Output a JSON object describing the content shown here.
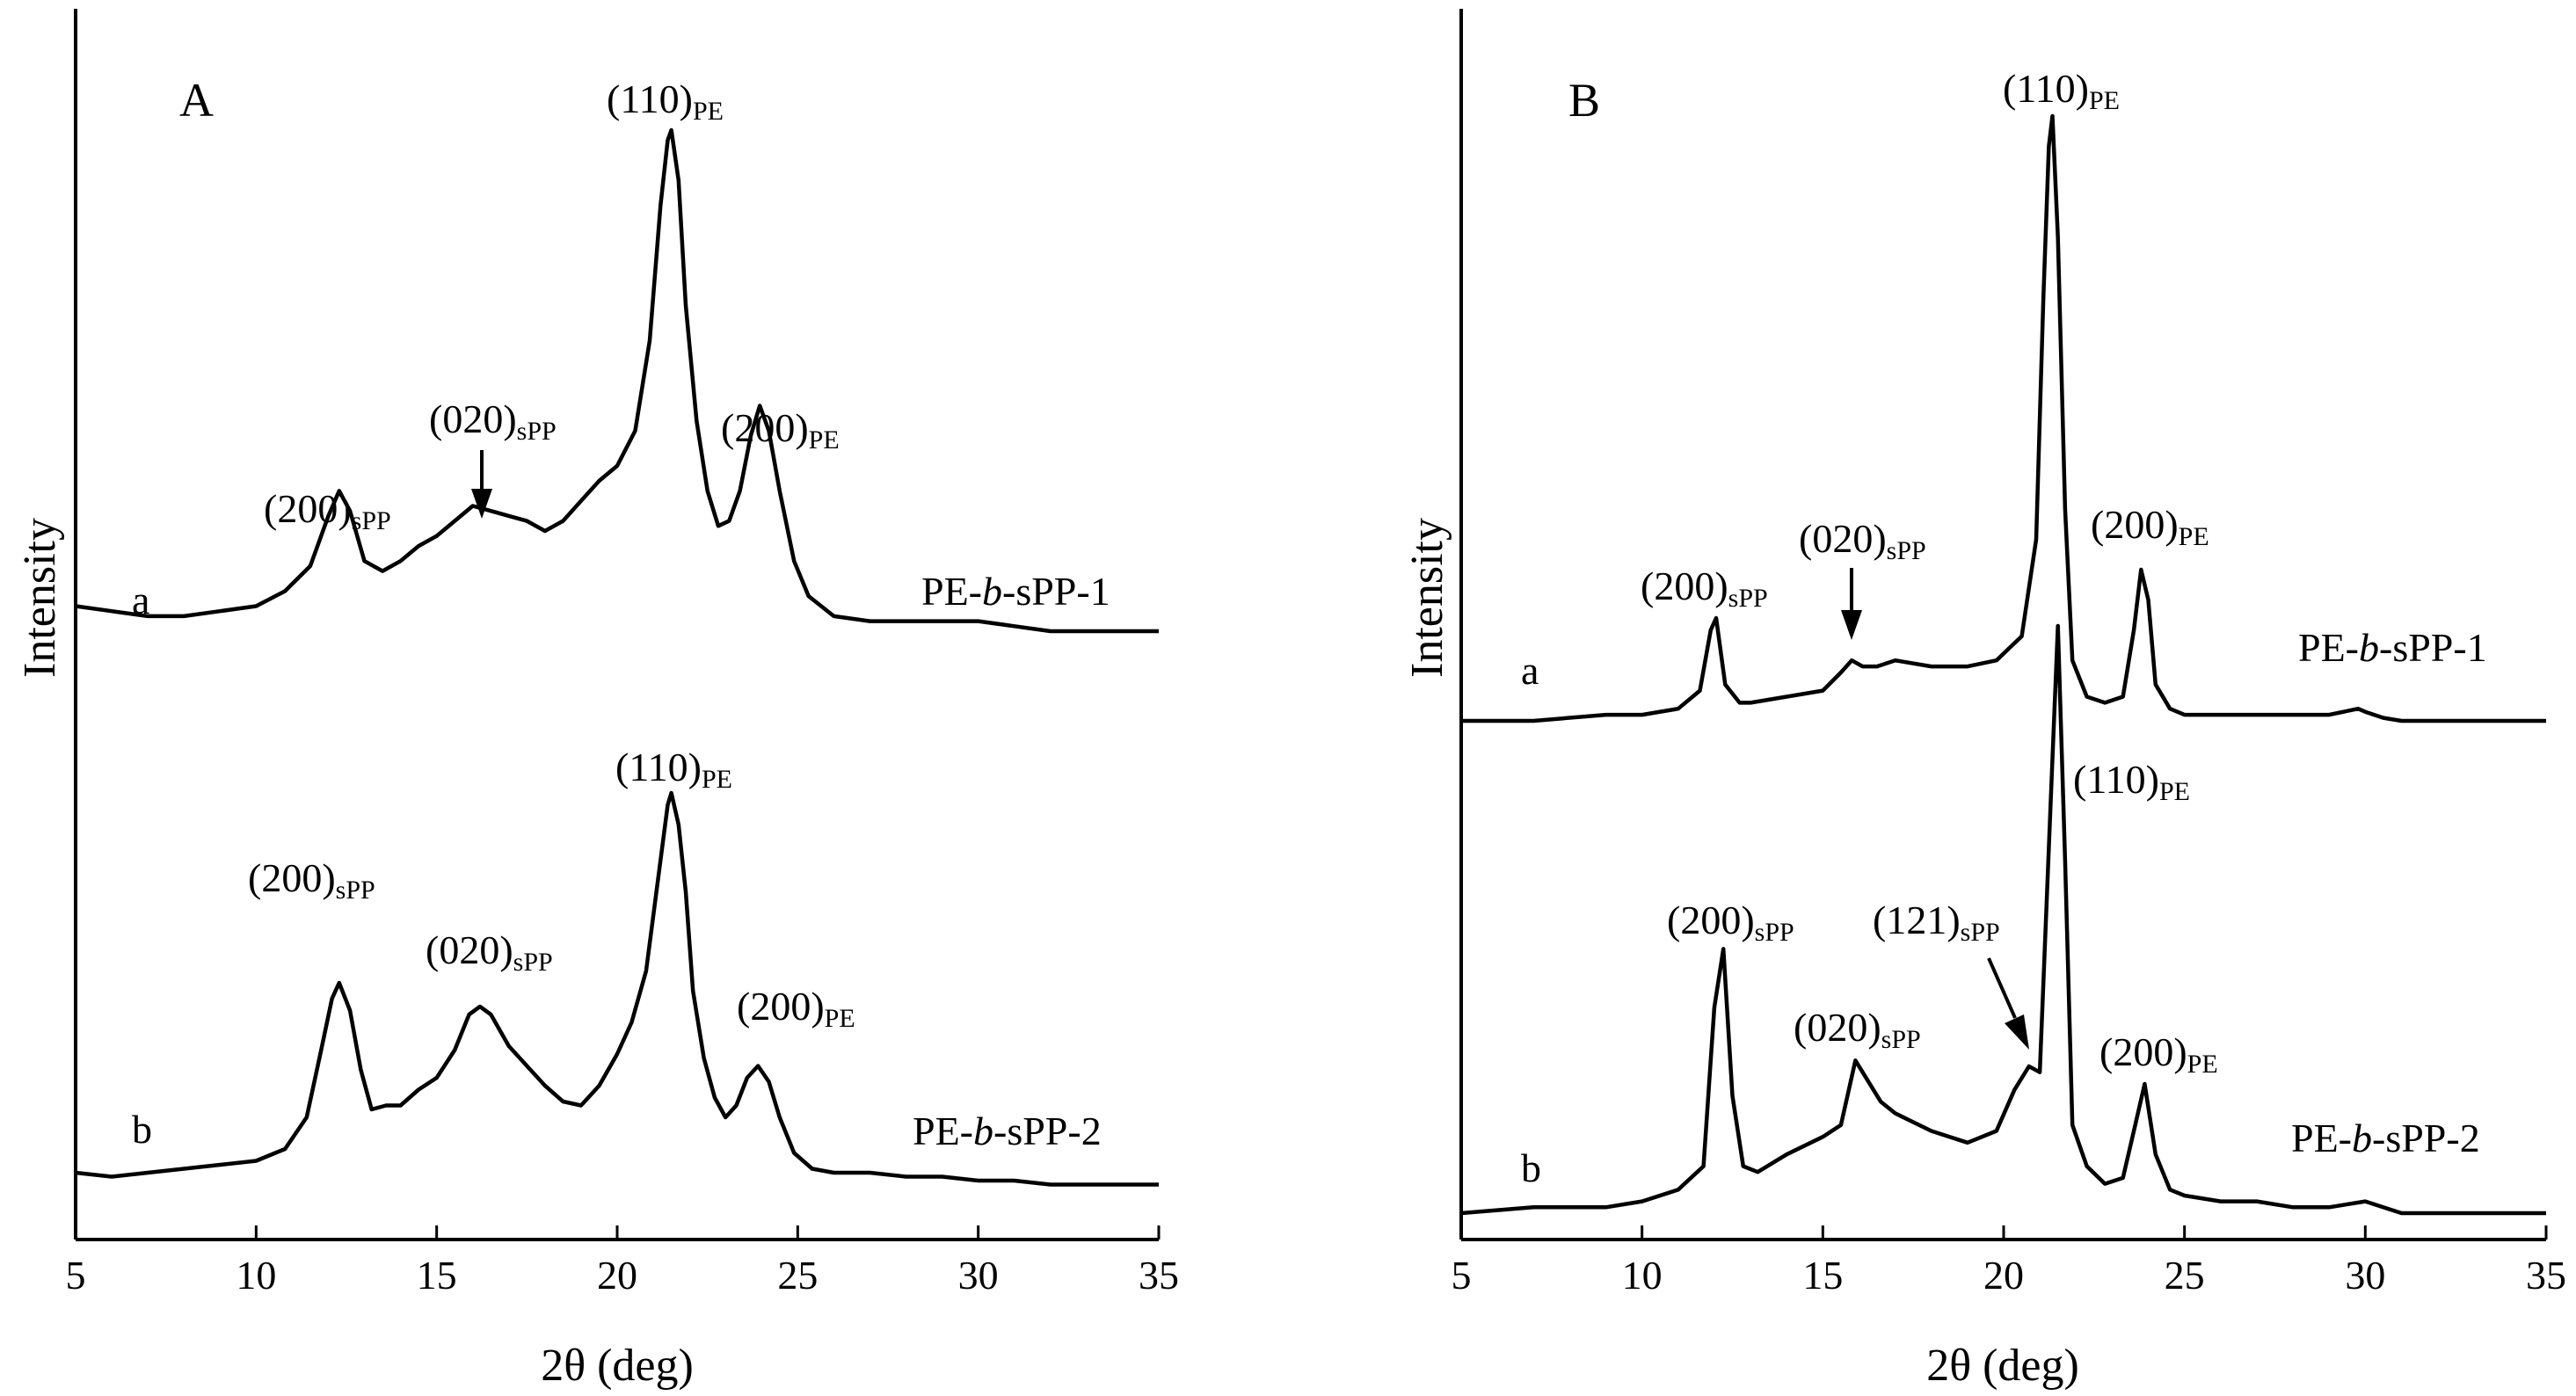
{
  "chart_data": [
    {
      "panel": "A",
      "type": "line",
      "xlabel": "2θ (deg)",
      "ylabel": "Intensity",
      "xlim": [
        5,
        35
      ],
      "xticks": [
        5,
        10,
        15,
        20,
        25,
        30,
        35
      ],
      "yticks": false,
      "series": [
        {
          "tag": "a",
          "name": "PE-b-sPP-1",
          "name_parts": [
            "PE-",
            "b",
            "-sPP-1"
          ],
          "points": [
            [
              5,
              0.05
            ],
            [
              6,
              0.04
            ],
            [
              7,
              0.03
            ],
            [
              8,
              0.03
            ],
            [
              9,
              0.04
            ],
            [
              10,
              0.05
            ],
            [
              10.8,
              0.08
            ],
            [
              11.5,
              0.13
            ],
            [
              12.0,
              0.23
            ],
            [
              12.3,
              0.28
            ],
            [
              12.6,
              0.24
            ],
            [
              13.0,
              0.14
            ],
            [
              13.5,
              0.12
            ],
            [
              14,
              0.14
            ],
            [
              14.5,
              0.17
            ],
            [
              15,
              0.19
            ],
            [
              15.5,
              0.22
            ],
            [
              16,
              0.25
            ],
            [
              16.5,
              0.24
            ],
            [
              17,
              0.23
            ],
            [
              17.5,
              0.22
            ],
            [
              18,
              0.2
            ],
            [
              18.5,
              0.22
            ],
            [
              19,
              0.26
            ],
            [
              19.5,
              0.3
            ],
            [
              20,
              0.33
            ],
            [
              20.5,
              0.4
            ],
            [
              20.9,
              0.58
            ],
            [
              21.2,
              0.85
            ],
            [
              21.4,
              0.98
            ],
            [
              21.5,
              1.0
            ],
            [
              21.7,
              0.9
            ],
            [
              21.9,
              0.65
            ],
            [
              22.2,
              0.42
            ],
            [
              22.5,
              0.28
            ],
            [
              22.8,
              0.21
            ],
            [
              23.1,
              0.22
            ],
            [
              23.4,
              0.28
            ],
            [
              23.7,
              0.39
            ],
            [
              23.95,
              0.45
            ],
            [
              24.2,
              0.4
            ],
            [
              24.5,
              0.28
            ],
            [
              24.9,
              0.14
            ],
            [
              25.3,
              0.07
            ],
            [
              26,
              0.03
            ],
            [
              27,
              0.02
            ],
            [
              28,
              0.02
            ],
            [
              29,
              0.02
            ],
            [
              30,
              0.02
            ],
            [
              31,
              0.01
            ],
            [
              32,
              0.0
            ],
            [
              33,
              0.0
            ],
            [
              34,
              0.0
            ],
            [
              35,
              0.0
            ]
          ]
        },
        {
          "tag": "b",
          "name": "PE-b-sPP-2",
          "name_parts": [
            "PE-",
            "b",
            "-sPP-2"
          ],
          "points": [
            [
              5,
              0.04
            ],
            [
              6,
              0.03
            ],
            [
              7,
              0.04
            ],
            [
              8,
              0.05
            ],
            [
              9,
              0.06
            ],
            [
              10,
              0.07
            ],
            [
              10.8,
              0.1
            ],
            [
              11.4,
              0.18
            ],
            [
              11.8,
              0.35
            ],
            [
              12.1,
              0.48
            ],
            [
              12.3,
              0.52
            ],
            [
              12.6,
              0.45
            ],
            [
              12.9,
              0.3
            ],
            [
              13.2,
              0.2
            ],
            [
              13.6,
              0.21
            ],
            [
              14,
              0.21
            ],
            [
              14.5,
              0.25
            ],
            [
              15,
              0.28
            ],
            [
              15.5,
              0.35
            ],
            [
              15.9,
              0.44
            ],
            [
              16.2,
              0.46
            ],
            [
              16.5,
              0.44
            ],
            [
              17,
              0.36
            ],
            [
              17.5,
              0.31
            ],
            [
              18,
              0.26
            ],
            [
              18.5,
              0.22
            ],
            [
              19,
              0.21
            ],
            [
              19.5,
              0.26
            ],
            [
              20,
              0.34
            ],
            [
              20.4,
              0.42
            ],
            [
              20.8,
              0.55
            ],
            [
              21.2,
              0.83
            ],
            [
              21.4,
              0.97
            ],
            [
              21.5,
              1.0
            ],
            [
              21.7,
              0.92
            ],
            [
              21.9,
              0.75
            ],
            [
              22.1,
              0.5
            ],
            [
              22.4,
              0.33
            ],
            [
              22.7,
              0.23
            ],
            [
              23.0,
              0.18
            ],
            [
              23.3,
              0.21
            ],
            [
              23.6,
              0.28
            ],
            [
              23.9,
              0.31
            ],
            [
              24.2,
              0.27
            ],
            [
              24.5,
              0.18
            ],
            [
              24.9,
              0.09
            ],
            [
              25.4,
              0.05
            ],
            [
              26,
              0.04
            ],
            [
              27,
              0.04
            ],
            [
              28,
              0.03
            ],
            [
              29,
              0.03
            ],
            [
              30,
              0.02
            ],
            [
              31,
              0.02
            ],
            [
              32,
              0.01
            ],
            [
              33,
              0.01
            ],
            [
              34,
              0.01
            ],
            [
              35,
              0.01
            ]
          ]
        }
      ],
      "annotations": [
        {
          "main": "(200)",
          "sub": "sPP",
          "series": "a"
        },
        {
          "main": "(020)",
          "sub": "sPP",
          "series": "a",
          "arrow": true
        },
        {
          "main": "(110)",
          "sub": "PE",
          "series": "a"
        },
        {
          "main": "(200)",
          "sub": "PE",
          "series": "a"
        },
        {
          "main": "(200)",
          "sub": "sPP",
          "series": "b"
        },
        {
          "main": "(020)",
          "sub": "sPP",
          "series": "b"
        },
        {
          "main": "(110)",
          "sub": "PE",
          "series": "b"
        },
        {
          "main": "(200)",
          "sub": "PE",
          "series": "b"
        }
      ]
    },
    {
      "panel": "B",
      "type": "line",
      "xlabel": "2θ (deg)",
      "ylabel": "Intensity",
      "xlim": [
        5,
        35
      ],
      "xticks": [
        5,
        10,
        15,
        20,
        25,
        30,
        35
      ],
      "yticks": false,
      "series": [
        {
          "tag": "a",
          "name": "PE-b-sPP-1",
          "name_parts": [
            "PE-",
            "b",
            "-sPP-1"
          ],
          "points": [
            [
              5,
              0.0
            ],
            [
              7,
              0.0
            ],
            [
              9,
              0.01
            ],
            [
              10,
              0.01
            ],
            [
              11,
              0.02
            ],
            [
              11.6,
              0.05
            ],
            [
              11.9,
              0.15
            ],
            [
              12.05,
              0.17
            ],
            [
              12.3,
              0.06
            ],
            [
              12.7,
              0.03
            ],
            [
              13,
              0.03
            ],
            [
              14,
              0.04
            ],
            [
              15,
              0.05
            ],
            [
              15.5,
              0.08
            ],
            [
              15.8,
              0.1
            ],
            [
              16.1,
              0.09
            ],
            [
              16.5,
              0.09
            ],
            [
              17,
              0.1
            ],
            [
              18,
              0.09
            ],
            [
              19,
              0.09
            ],
            [
              19.8,
              0.1
            ],
            [
              20.5,
              0.14
            ],
            [
              20.9,
              0.3
            ],
            [
              21.1,
              0.7
            ],
            [
              21.25,
              0.95
            ],
            [
              21.35,
              1.0
            ],
            [
              21.5,
              0.8
            ],
            [
              21.7,
              0.35
            ],
            [
              21.9,
              0.1
            ],
            [
              22.3,
              0.04
            ],
            [
              22.8,
              0.03
            ],
            [
              23.3,
              0.04
            ],
            [
              23.6,
              0.15
            ],
            [
              23.8,
              0.25
            ],
            [
              24.0,
              0.2
            ],
            [
              24.2,
              0.06
            ],
            [
              24.6,
              0.02
            ],
            [
              25,
              0.01
            ],
            [
              26,
              0.01
            ],
            [
              27,
              0.01
            ],
            [
              28,
              0.01
            ],
            [
              29,
              0.01
            ],
            [
              29.8,
              0.02
            ],
            [
              30,
              0.015
            ],
            [
              30.5,
              0.005
            ],
            [
              31,
              0.0
            ],
            [
              33,
              0.0
            ],
            [
              35,
              0.0
            ]
          ]
        },
        {
          "tag": "b",
          "name": "PE-b-sPP-2",
          "name_parts": [
            "PE-",
            "b",
            "-sPP-2"
          ],
          "points": [
            [
              5,
              0.0
            ],
            [
              7,
              0.01
            ],
            [
              9,
              0.01
            ],
            [
              10,
              0.02
            ],
            [
              11,
              0.04
            ],
            [
              11.7,
              0.08
            ],
            [
              12.0,
              0.35
            ],
            [
              12.25,
              0.45
            ],
            [
              12.5,
              0.2
            ],
            [
              12.8,
              0.08
            ],
            [
              13.2,
              0.07
            ],
            [
              14,
              0.1
            ],
            [
              15,
              0.13
            ],
            [
              15.5,
              0.15
            ],
            [
              15.9,
              0.26
            ],
            [
              16.1,
              0.24
            ],
            [
              16.6,
              0.19
            ],
            [
              17,
              0.17
            ],
            [
              18,
              0.14
            ],
            [
              19,
              0.12
            ],
            [
              19.8,
              0.14
            ],
            [
              20.3,
              0.21
            ],
            [
              20.7,
              0.25
            ],
            [
              21.0,
              0.24
            ],
            [
              21.3,
              0.7
            ],
            [
              21.5,
              1.0
            ],
            [
              21.7,
              0.6
            ],
            [
              21.9,
              0.15
            ],
            [
              22.3,
              0.08
            ],
            [
              22.8,
              0.05
            ],
            [
              23.3,
              0.06
            ],
            [
              23.6,
              0.14
            ],
            [
              23.9,
              0.22
            ],
            [
              24.2,
              0.1
            ],
            [
              24.6,
              0.04
            ],
            [
              25,
              0.03
            ],
            [
              26,
              0.02
            ],
            [
              27,
              0.02
            ],
            [
              28,
              0.01
            ],
            [
              29,
              0.01
            ],
            [
              30,
              0.02
            ],
            [
              31,
              0.0
            ],
            [
              33,
              0.0
            ],
            [
              35,
              0.0
            ]
          ]
        }
      ],
      "annotations": [
        {
          "main": "(200)",
          "sub": "sPP",
          "series": "a"
        },
        {
          "main": "(020)",
          "sub": "sPP",
          "series": "a",
          "arrow": true
        },
        {
          "main": "(110)",
          "sub": "PE",
          "series": "a"
        },
        {
          "main": "(200)",
          "sub": "PE",
          "series": "a"
        },
        {
          "main": "(200)",
          "sub": "sPP",
          "series": "b"
        },
        {
          "main": "(020)",
          "sub": "sPP",
          "series": "b"
        },
        {
          "main": "(121)",
          "sub": "sPP",
          "series": "b",
          "arrow": true
        },
        {
          "main": "(110)",
          "sub": "PE",
          "series": "b"
        },
        {
          "main": "(200)",
          "sub": "PE",
          "series": "b"
        }
      ]
    }
  ]
}
